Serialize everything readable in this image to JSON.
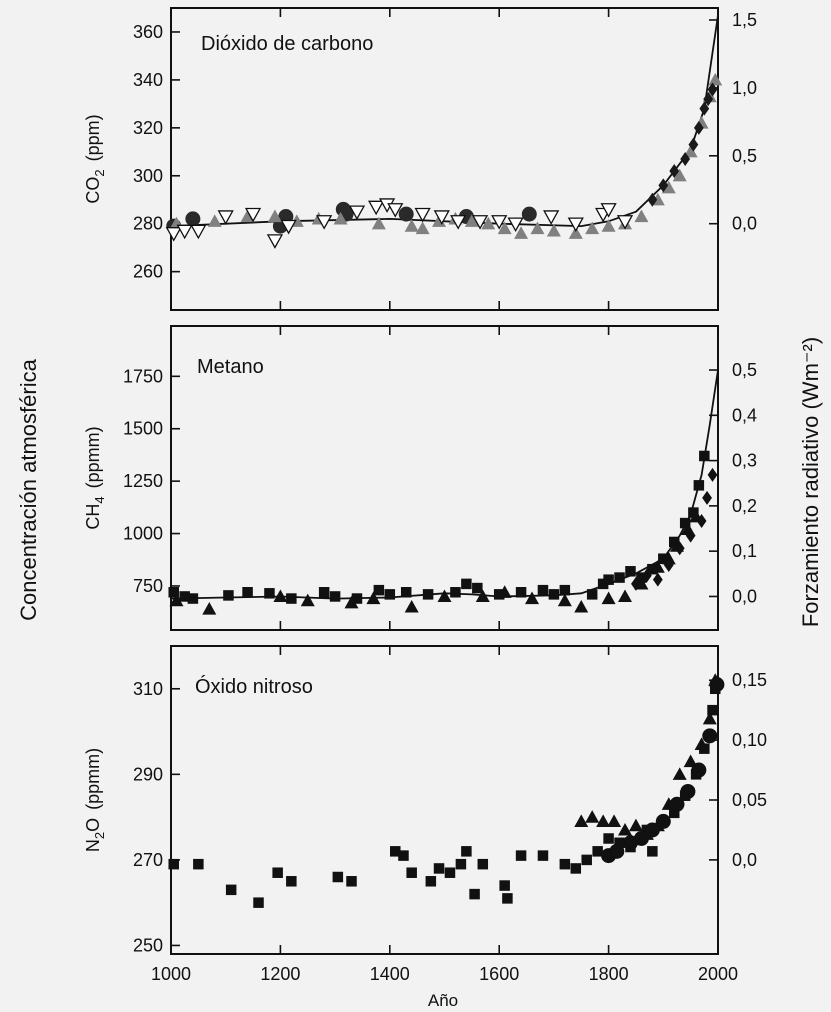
{
  "figure": {
    "left_label": "Concentración atmosférica",
    "right_label": "Forzamiento radiativo  (Wm⁻²)",
    "xlabel": "Año"
  },
  "chart_data": [
    {
      "type": "scatter",
      "title": "Dióxido de carbono",
      "ylabel_main": "CO",
      "ylabel_sub": "2",
      "ylabel_unit": "(ppm)",
      "xlim": [
        1000,
        2000
      ],
      "ylim": [
        244,
        370
      ],
      "y_ticks": [
        260,
        280,
        300,
        320,
        340,
        360
      ],
      "y_tick_labels": [
        "260",
        "280",
        "300",
        "320",
        "340",
        "360"
      ],
      "x_ticks": [
        1000,
        1200,
        1400,
        1600,
        1800,
        2000
      ],
      "right_axis": {
        "ticks": [
          0.0,
          0.5,
          1.0,
          1.5
        ],
        "tick_labels": [
          "0,0",
          "0,5",
          "1,0",
          "1,5"
        ],
        "anchors": [
          [
            280,
            0.0
          ],
          [
            365,
            1.5
          ]
        ]
      },
      "series": [
        {
          "marker": "circle",
          "color": "#2a2a2a",
          "points": [
            [
              1005,
              279
            ],
            [
              1040,
              282
            ],
            [
              1200,
              279
            ],
            [
              1210,
              283
            ],
            [
              1315,
              286
            ],
            [
              1320,
              284
            ],
            [
              1430,
              284
            ],
            [
              1540,
              283
            ],
            [
              1655,
              284
            ]
          ]
        },
        {
          "marker": "triangle",
          "color": "#808080",
          "points": [
            [
              1010,
              280
            ],
            [
              1080,
              281
            ],
            [
              1140,
              283
            ],
            [
              1190,
              283
            ],
            [
              1230,
              281
            ],
            [
              1270,
              282
            ],
            [
              1310,
              282
            ],
            [
              1380,
              280
            ],
            [
              1440,
              279
            ],
            [
              1460,
              278
            ],
            [
              1490,
              281
            ],
            [
              1520,
              282
            ],
            [
              1550,
              281
            ],
            [
              1580,
              280
            ],
            [
              1610,
              278
            ],
            [
              1640,
              276
            ],
            [
              1670,
              278
            ],
            [
              1700,
              277
            ],
            [
              1740,
              276
            ],
            [
              1770,
              278
            ],
            [
              1800,
              279
            ],
            [
              1830,
              280
            ],
            [
              1860,
              283
            ],
            [
              1890,
              290
            ],
            [
              1910,
              295
            ],
            [
              1930,
              300
            ],
            [
              1950,
              310
            ],
            [
              1970,
              322
            ],
            [
              1985,
              333
            ],
            [
              1995,
              340
            ]
          ]
        },
        {
          "marker": "triangle-down",
          "color": "#ffffff",
          "points": [
            [
              1005,
              276
            ],
            [
              1025,
              277
            ],
            [
              1050,
              277
            ],
            [
              1100,
              283
            ],
            [
              1150,
              284
            ],
            [
              1190,
              273
            ],
            [
              1215,
              279
            ],
            [
              1280,
              281
            ],
            [
              1340,
              285
            ],
            [
              1375,
              287
            ],
            [
              1395,
              288
            ],
            [
              1410,
              286
            ],
            [
              1460,
              284
            ],
            [
              1495,
              283
            ],
            [
              1525,
              281
            ],
            [
              1565,
              281
            ],
            [
              1600,
              281
            ],
            [
              1630,
              280
            ],
            [
              1695,
              283
            ],
            [
              1740,
              280
            ],
            [
              1790,
              284
            ],
            [
              1800,
              286
            ],
            [
              1830,
              281
            ]
          ]
        },
        {
          "marker": "diamond",
          "color": "#1a1a1a",
          "points": [
            [
              1880,
              290
            ],
            [
              1900,
              296
            ],
            [
              1920,
              302
            ],
            [
              1940,
              307
            ],
            [
              1955,
              313
            ],
            [
              1965,
              320
            ],
            [
              1975,
              328
            ],
            [
              1982,
              332
            ],
            [
              1990,
              336
            ]
          ]
        }
      ],
      "fit_line": [
        [
          1000,
          279
        ],
        [
          1200,
          281
        ],
        [
          1400,
          282
        ],
        [
          1600,
          280
        ],
        [
          1750,
          279
        ],
        [
          1800,
          281
        ],
        [
          1850,
          285
        ],
        [
          1900,
          296
        ],
        [
          1950,
          311
        ],
        [
          1975,
          328
        ],
        [
          2000,
          367
        ]
      ]
    },
    {
      "type": "scatter",
      "title": "Metano",
      "ylabel_main": "CH",
      "ylabel_sub": "4",
      "ylabel_unit": "(ppmm)",
      "xlim": [
        1000,
        2000
      ],
      "ylim": [
        540,
        1990
      ],
      "y_ticks": [
        750,
        1000,
        1250,
        1500,
        1750
      ],
      "y_tick_labels": [
        "750",
        "1000",
        "1250",
        "1500",
        "1750"
      ],
      "x_ticks": [
        1000,
        1200,
        1400,
        1600,
        1800,
        2000
      ],
      "right_axis": {
        "ticks": [
          0.0,
          0.1,
          0.2,
          0.3,
          0.4,
          0.5
        ],
        "tick_labels": [
          "0,0",
          "0,1",
          "0,2",
          "0,3",
          "0,4",
          "0,5"
        ],
        "anchors": [
          [
            700,
            0.0
          ],
          [
            1780,
            0.5
          ]
        ]
      },
      "series": [
        {
          "marker": "square",
          "color": "#111111",
          "points": [
            [
              1005,
              720
            ],
            [
              1025,
              700
            ],
            [
              1040,
              690
            ],
            [
              1105,
              705
            ],
            [
              1140,
              720
            ],
            [
              1180,
              715
            ],
            [
              1220,
              690
            ],
            [
              1280,
              720
            ],
            [
              1300,
              700
            ],
            [
              1340,
              690
            ],
            [
              1380,
              730
            ],
            [
              1400,
              710
            ],
            [
              1430,
              720
            ],
            [
              1470,
              710
            ],
            [
              1520,
              720
            ],
            [
              1540,
              760
            ],
            [
              1560,
              740
            ],
            [
              1600,
              710
            ],
            [
              1640,
              720
            ],
            [
              1680,
              730
            ],
            [
              1700,
              710
            ],
            [
              1720,
              730
            ],
            [
              1770,
              710
            ],
            [
              1790,
              760
            ],
            [
              1800,
              780
            ],
            [
              1820,
              790
            ],
            [
              1840,
              820
            ],
            [
              1860,
              790
            ],
            [
              1880,
              830
            ],
            [
              1900,
              880
            ],
            [
              1920,
              960
            ],
            [
              1940,
              1050
            ],
            [
              1955,
              1100
            ],
            [
              1965,
              1230
            ],
            [
              1975,
              1370
            ]
          ]
        },
        {
          "marker": "triangle",
          "color": "#111111",
          "points": [
            [
              1010,
              680
            ],
            [
              1070,
              640
            ],
            [
              1200,
              700
            ],
            [
              1250,
              680
            ],
            [
              1330,
              670
            ],
            [
              1370,
              690
            ],
            [
              1440,
              650
            ],
            [
              1500,
              700
            ],
            [
              1570,
              700
            ],
            [
              1610,
              720
            ],
            [
              1660,
              690
            ],
            [
              1720,
              680
            ],
            [
              1750,
              650
            ],
            [
              1800,
              690
            ],
            [
              1830,
              700
            ],
            [
              1860,
              760
            ],
            [
              1890,
              840
            ],
            [
              1910,
              880
            ],
            [
              1925,
              940
            ],
            [
              1945,
              1020
            ],
            [
              1960,
              1080
            ]
          ]
        },
        {
          "marker": "diamond",
          "color": "#111111",
          "points": [
            [
              1850,
              760
            ],
            [
              1870,
              800
            ],
            [
              1890,
              780
            ],
            [
              1910,
              850
            ],
            [
              1930,
              930
            ],
            [
              1950,
              990
            ],
            [
              1970,
              1060
            ],
            [
              1980,
              1170
            ],
            [
              1990,
              1280
            ]
          ]
        }
      ],
      "fit_line": [
        [
          1000,
          690
        ],
        [
          1100,
          695
        ],
        [
          1200,
          700
        ],
        [
          1300,
          690
        ],
        [
          1400,
          695
        ],
        [
          1500,
          715
        ],
        [
          1550,
          710
        ],
        [
          1600,
          700
        ],
        [
          1700,
          705
        ],
        [
          1750,
          715
        ],
        [
          1800,
          760
        ],
        [
          1850,
          810
        ],
        [
          1900,
          880
        ],
        [
          1930,
          990
        ],
        [
          1950,
          1090
        ],
        [
          1970,
          1280
        ],
        [
          1985,
          1520
        ],
        [
          2000,
          1780
        ]
      ]
    },
    {
      "type": "scatter",
      "title": "Óxido nitroso",
      "ylabel_main": "N",
      "ylabel_sub": "2",
      "ylabel_main_after": "O",
      "ylabel_unit": "(ppmm)",
      "xlim": [
        1000,
        2000
      ],
      "ylim": [
        248,
        320
      ],
      "y_ticks": [
        250,
        270,
        290,
        310
      ],
      "y_tick_labels": [
        "250",
        "270",
        "290",
        "310"
      ],
      "x_ticks": [
        1000,
        1200,
        1400,
        1600,
        1800,
        2000
      ],
      "x_tick_labels": [
        "1000",
        "1200",
        "1400",
        "1600",
        "1800",
        "2000"
      ],
      "right_axis": {
        "ticks": [
          0.0,
          0.05,
          0.1,
          0.15
        ],
        "tick_labels": [
          "0,0",
          "0,05",
          "0,10",
          "0,15"
        ],
        "anchors": [
          [
            270,
            0.0
          ],
          [
            312,
            0.15
          ]
        ]
      },
      "series": [
        {
          "marker": "square",
          "color": "#111111",
          "points": [
            [
              1005,
              269
            ],
            [
              1050,
              269
            ],
            [
              1110,
              263
            ],
            [
              1160,
              260
            ],
            [
              1195,
              267
            ],
            [
              1220,
              265
            ],
            [
              1305,
              266
            ],
            [
              1330,
              265
            ],
            [
              1410,
              272
            ],
            [
              1425,
              271
            ],
            [
              1440,
              267
            ],
            [
              1475,
              265
            ],
            [
              1490,
              268
            ],
            [
              1510,
              267
            ],
            [
              1530,
              269
            ],
            [
              1540,
              272
            ],
            [
              1555,
              262
            ],
            [
              1570,
              269
            ],
            [
              1610,
              264
            ],
            [
              1615,
              261
            ],
            [
              1640,
              271
            ],
            [
              1680,
              271
            ],
            [
              1720,
              269
            ],
            [
              1740,
              268
            ],
            [
              1760,
              270
            ],
            [
              1780,
              272
            ],
            [
              1800,
              275
            ],
            [
              1820,
              274
            ],
            [
              1840,
              273
            ],
            [
              1870,
              277
            ],
            [
              1880,
              272
            ],
            [
              1900,
              279
            ],
            [
              1920,
              281
            ],
            [
              1940,
              285
            ],
            [
              1960,
              290
            ],
            [
              1975,
              296
            ],
            [
              1990,
              305
            ],
            [
              1995,
              310
            ]
          ]
        },
        {
          "marker": "triangle",
          "color": "#111111",
          "points": [
            [
              1750,
              279
            ],
            [
              1770,
              280
            ],
            [
              1790,
              279
            ],
            [
              1810,
              279
            ],
            [
              1830,
              277
            ],
            [
              1850,
              278
            ],
            [
              1870,
              276
            ],
            [
              1890,
              278
            ],
            [
              1910,
              283
            ],
            [
              1930,
              290
            ],
            [
              1950,
              293
            ],
            [
              1970,
              297
            ],
            [
              1985,
              303
            ],
            [
              1995,
              312
            ]
          ]
        },
        {
          "marker": "circle",
          "color": "#111111",
          "points": [
            [
              1800,
              271
            ],
            [
              1815,
              272
            ],
            [
              1840,
              274
            ],
            [
              1860,
              275
            ],
            [
              1880,
              277
            ],
            [
              1900,
              279
            ],
            [
              1925,
              283
            ],
            [
              1945,
              286
            ],
            [
              1965,
              291
            ],
            [
              1985,
              299
            ],
            [
              1998,
              311
            ]
          ]
        }
      ],
      "fit_line": []
    }
  ]
}
